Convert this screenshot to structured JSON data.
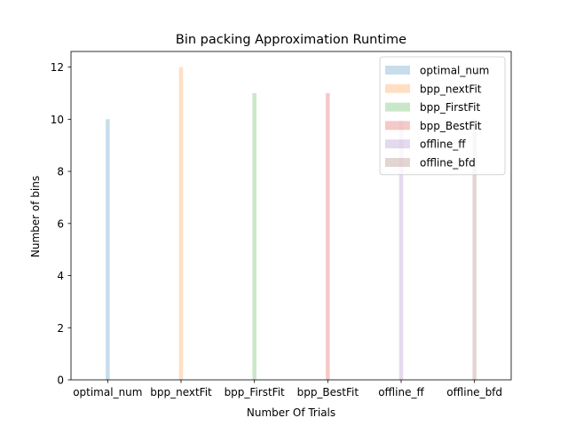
{
  "chart_data": {
    "type": "bar",
    "title": "Bin packing Approximation Runtime",
    "xlabel": "Number Of Trials",
    "ylabel": "Number of bins",
    "categories": [
      "optimal_num",
      "bpp_nextFit",
      "bpp_FirstFit",
      "bpp_BestFit",
      "offline_ff",
      "offline_bfd"
    ],
    "series": [
      {
        "name": "optimal_num",
        "category": "optimal_num",
        "value": 10,
        "color": "#1f77b4"
      },
      {
        "name": "bpp_nextFit",
        "category": "bpp_nextFit",
        "value": 12,
        "color": "#ff7f0e"
      },
      {
        "name": "bpp_FirstFit",
        "category": "bpp_FirstFit",
        "value": 11,
        "color": "#2ca02c"
      },
      {
        "name": "bpp_BestFit",
        "category": "bpp_BestFit",
        "value": 11,
        "color": "#d62728"
      },
      {
        "name": "offline_ff",
        "category": "offline_ff",
        "value": 10,
        "color": "#9467bd"
      },
      {
        "name": "offline_bfd",
        "category": "offline_bfd",
        "value": 10,
        "color": "#8c564b"
      }
    ],
    "bar_opacity": 0.25,
    "ylim": [
      0,
      12.6
    ],
    "yticks": [
      0,
      2,
      4,
      6,
      8,
      10,
      12
    ],
    "grid": false,
    "legend_position": "top-right"
  }
}
